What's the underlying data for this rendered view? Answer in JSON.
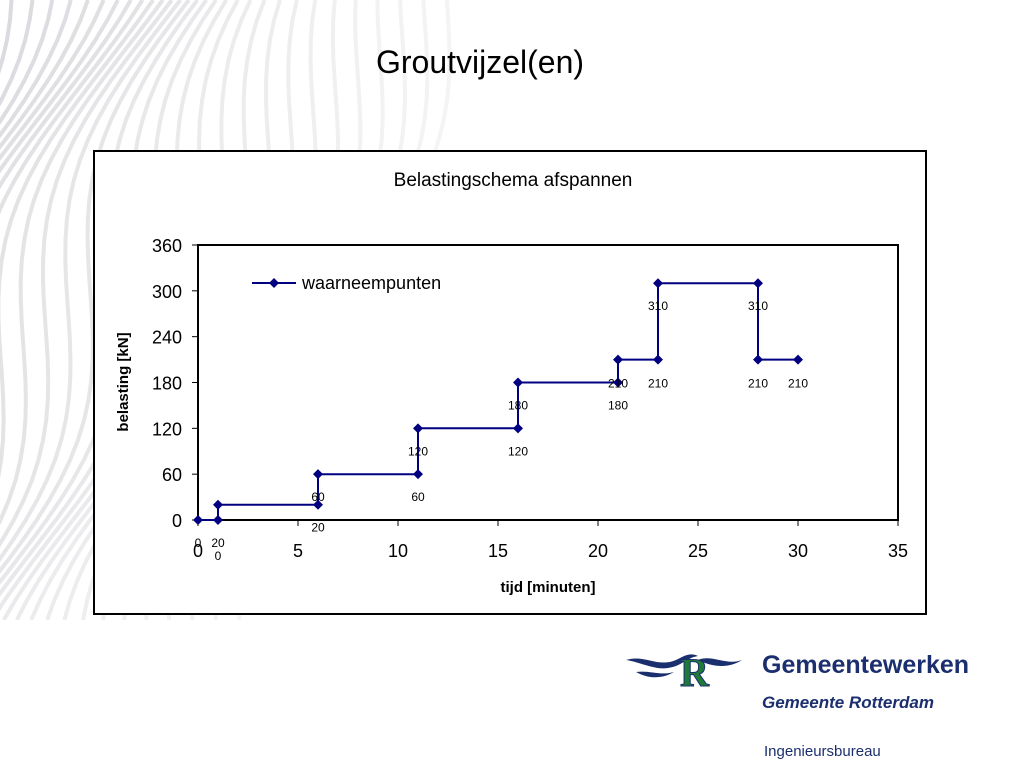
{
  "slide": {
    "title": "Groutvijzel(en)"
  },
  "chart_data": {
    "type": "line",
    "title": "Belastingschema afspannen",
    "xlabel": "tijd [minuten]",
    "ylabel": "belasting [kN]",
    "xlim": [
      0,
      35
    ],
    "ylim": [
      0,
      360
    ],
    "xticks": [
      0,
      5,
      10,
      15,
      20,
      25,
      30,
      35
    ],
    "yticks": [
      0,
      60,
      120,
      180,
      240,
      300,
      360
    ],
    "grid": false,
    "legend_position": "top-left",
    "series": [
      {
        "name": "waarneempunten",
        "color": "#000080",
        "x": [
          0,
          1,
          1,
          6,
          6,
          11,
          11,
          16,
          16,
          21,
          21,
          23,
          23,
          28,
          28,
          30
        ],
        "y": [
          0,
          0,
          20,
          20,
          60,
          60,
          120,
          120,
          180,
          180,
          210,
          210,
          310,
          310,
          210,
          210
        ]
      }
    ],
    "data_labels": [
      {
        "text": "0",
        "x": 0,
        "y": 0,
        "pos": "below"
      },
      {
        "text": "20",
        "x": 1,
        "y": 0,
        "pos": "below"
      },
      {
        "text": "0",
        "x": 1,
        "y": 0,
        "pos": "below2"
      },
      {
        "text": "20",
        "x": 6,
        "y": 20,
        "pos": "below"
      },
      {
        "text": "60",
        "x": 6,
        "y": 60,
        "pos": "below"
      },
      {
        "text": "60",
        "x": 11,
        "y": 60,
        "pos": "below"
      },
      {
        "text": "120",
        "x": 11,
        "y": 120,
        "pos": "below"
      },
      {
        "text": "120",
        "x": 16,
        "y": 120,
        "pos": "below"
      },
      {
        "text": "180",
        "x": 16,
        "y": 180,
        "pos": "below"
      },
      {
        "text": "210",
        "x": 21,
        "y": 180,
        "pos": "on"
      },
      {
        "text": "180",
        "x": 21,
        "y": 180,
        "pos": "below"
      },
      {
        "text": "210",
        "x": 23,
        "y": 180,
        "pos": "on"
      },
      {
        "text": "310",
        "x": 23,
        "y": 310,
        "pos": "below"
      },
      {
        "text": "310",
        "x": 28,
        "y": 310,
        "pos": "below"
      },
      {
        "text": "210",
        "x": 28,
        "y": 180,
        "pos": "on"
      },
      {
        "text": "210",
        "x": 30,
        "y": 180,
        "pos": "on"
      }
    ]
  },
  "branding": {
    "name": "Gemeentewerken",
    "sub": "Gemeente Rotterdam",
    "department": "Ingenieursbureau",
    "logo_colors": {
      "green": "#1f7a3a",
      "navy": "#1b2f6e"
    }
  }
}
